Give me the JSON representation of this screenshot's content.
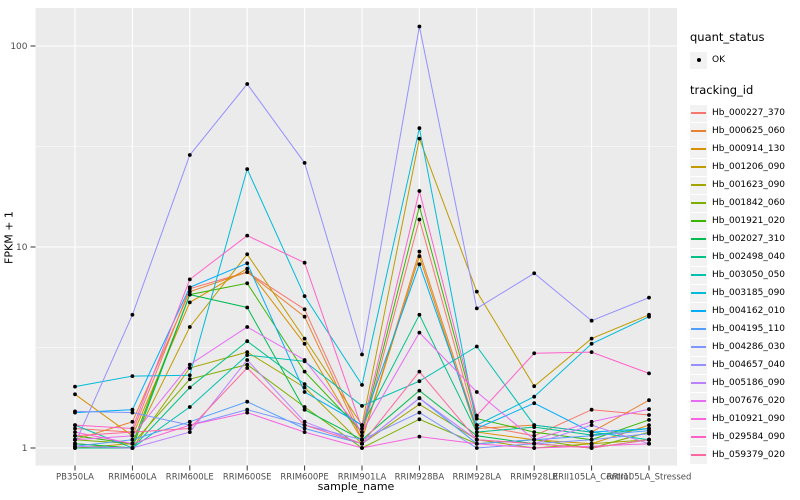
{
  "figure": {
    "background": "#FFFFFF",
    "panel_background": "#EBEBEB",
    "gridline_color": "#FFFFFF",
    "tick_color": "#333333",
    "tick_label_color": "#4D4D4D",
    "point_color": "#000000"
  },
  "chart_data": {
    "type": "line",
    "title": "",
    "xlabel": "sample_name",
    "ylabel": "FPKM + 1",
    "y_scale": "log10",
    "y_ticks": [
      1,
      10,
      100
    ],
    "y_minor_ticks": [
      3.1623,
      31.623
    ],
    "ylim": [
      0.82,
      155
    ],
    "grid": true,
    "legend_position": "right",
    "marker": "point",
    "categories": [
      "PB350LA",
      "RRIM600LA",
      "RRIM600LE",
      "RRIM600SE",
      "RRIM600PE",
      "RRIM901LA",
      "RRIM928BA",
      "RRIM928LA",
      "RRIM928LE",
      "RRII105LA_Control",
      "RRII105LA_Stressed"
    ],
    "series": [
      {
        "name": "Hb_000227_370",
        "color": "#F8766D",
        "values": [
          1.25,
          1.2,
          6.2,
          7.5,
          4.9,
          1.15,
          13.7,
          1.3,
          1.15,
          1.55,
          1.46
        ]
      },
      {
        "name": "Hb_000625_060",
        "color": "#EA8331",
        "values": [
          1.1,
          1.35,
          6.0,
          7.5,
          4.5,
          1.1,
          9.5,
          1.25,
          1.3,
          1.2,
          1.73
        ]
      },
      {
        "name": "Hb_000914_130",
        "color": "#D89000",
        "values": [
          1.85,
          1.15,
          5.3,
          7.8,
          3.3,
          1.1,
          9.0,
          1.2,
          1.1,
          1.05,
          1.3
        ]
      },
      {
        "name": "Hb_001206_090",
        "color": "#C09B00",
        "values": [
          1.0,
          1.05,
          4.0,
          9.2,
          3.5,
          1.3,
          34.6,
          6.0,
          2.03,
          3.5,
          4.6
        ]
      },
      {
        "name": "Hb_001623_090",
        "color": "#A3A500",
        "values": [
          1.05,
          1.0,
          2.5,
          3.0,
          2.0,
          1.05,
          1.65,
          1.1,
          1.0,
          1.05,
          1.1
        ]
      },
      {
        "name": "Hb_001842_060",
        "color": "#7CAE00",
        "values": [
          1.1,
          1.05,
          2.2,
          2.6,
          1.6,
          1.0,
          1.39,
          1.05,
          1.1,
          1.0,
          1.2
        ]
      },
      {
        "name": "Hb_001921_020",
        "color": "#39B600",
        "values": [
          1.15,
          1.05,
          5.8,
          6.6,
          2.4,
          1.2,
          15.9,
          1.4,
          1.2,
          1.1,
          1.38
        ]
      },
      {
        "name": "Hb_002027_310",
        "color": "#00BB4E",
        "values": [
          1.05,
          1.0,
          5.8,
          5.0,
          1.55,
          1.1,
          1.93,
          1.15,
          1.05,
          1.0,
          1.1
        ]
      },
      {
        "name": "Hb_002498_040",
        "color": "#00C087",
        "values": [
          1.0,
          1.0,
          2.0,
          3.4,
          2.08,
          1.29,
          4.6,
          1.2,
          1.27,
          1.16,
          1.25
        ]
      },
      {
        "name": "Hb_003050_050",
        "color": "#00C0B2",
        "values": [
          1.3,
          1.0,
          1.6,
          2.9,
          2.7,
          1.62,
          2.15,
          3.2,
          1.3,
          1.2,
          1.1
        ]
      },
      {
        "name": "Hb_003185_090",
        "color": "#00BBDA",
        "values": [
          2.02,
          2.28,
          2.3,
          24.4,
          5.7,
          2.06,
          39.0,
          1.3,
          1.8,
          3.3,
          4.5
        ]
      },
      {
        "name": "Hb_004162_010",
        "color": "#00ACFC",
        "values": [
          1.5,
          1.55,
          6.3,
          8.3,
          1.9,
          1.3,
          8.2,
          1.25,
          1.67,
          1.2,
          1.25
        ]
      },
      {
        "name": "Hb_004195_110",
        "color": "#529EFF",
        "values": [
          1.02,
          1.1,
          1.35,
          1.7,
          1.25,
          1.05,
          1.77,
          1.05,
          1.1,
          1.15,
          1.22
        ]
      },
      {
        "name": "Hb_004286_030",
        "color": "#7E96FF",
        "values": [
          1.52,
          1.5,
          1.3,
          1.55,
          1.3,
          1.1,
          1.5,
          1.0,
          1.05,
          1.1,
          1.18
        ]
      },
      {
        "name": "Hb_004657_040",
        "color": "#9590FF",
        "values": [
          1.05,
          4.6,
          28.7,
          64.7,
          26.2,
          2.92,
          125,
          4.95,
          7.4,
          4.3,
          5.6
        ]
      },
      {
        "name": "Hb_005186_090",
        "color": "#BC81FF",
        "values": [
          1.02,
          1.0,
          1.2,
          2.74,
          1.35,
          1.05,
          1.77,
          1.1,
          1.05,
          1.3,
          1.05
        ]
      },
      {
        "name": "Hb_007676_020",
        "color": "#E76BF3",
        "values": [
          1.1,
          1.15,
          2.6,
          4.0,
          2.74,
          1.2,
          3.75,
          1.9,
          1.1,
          1.35,
          1.56
        ]
      },
      {
        "name": "Hb_010921_090",
        "color": "#F763E0",
        "values": [
          1.2,
          1.05,
          1.3,
          1.5,
          1.2,
          1.0,
          1.14,
          1.05,
          1.0,
          1.02,
          1.05
        ]
      },
      {
        "name": "Hb_029584_090",
        "color": "#FF61C9",
        "values": [
          1.3,
          1.25,
          6.9,
          11.4,
          8.35,
          1.25,
          19.0,
          1.45,
          2.96,
          3.0,
          2.35
        ]
      },
      {
        "name": "Hb_059379_020",
        "color": "#FF689F",
        "values": [
          1.15,
          1.2,
          1.25,
          2.5,
          1.3,
          1.05,
          2.4,
          1.1,
          1.05,
          1.0,
          1.1
        ]
      }
    ]
  },
  "legend": {
    "quant_status": {
      "title": "quant_status",
      "items": [
        {
          "label": "OK"
        }
      ]
    },
    "tracking_id": {
      "title": "tracking_id"
    }
  }
}
